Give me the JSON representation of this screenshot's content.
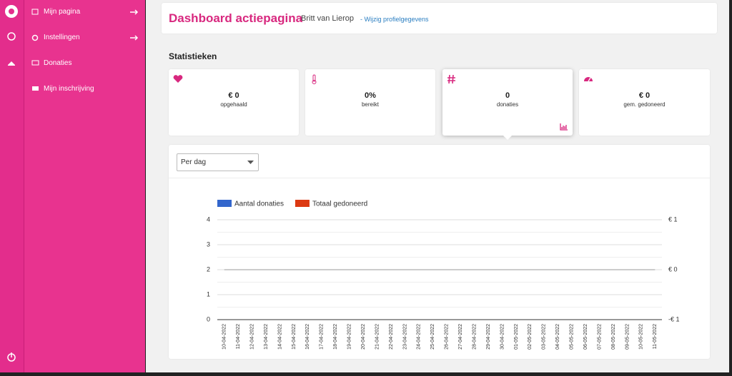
{
  "sidebar": {
    "menu": [
      "Mijn pagina",
      "Instellingen",
      "Donaties",
      "Mijn inschrijving"
    ]
  },
  "header": {
    "title": "Dashboard actiepagina",
    "user": "Britt van Lierop",
    "link": "- Wijzig profielgegevens"
  },
  "stats": {
    "title": "Statistieken",
    "cards": [
      {
        "value": "€ 0",
        "label": "opgehaald"
      },
      {
        "value": "0%",
        "label": "bereikt"
      },
      {
        "value": "0",
        "label": "donaties"
      },
      {
        "value": "€ 0",
        "label": "gem. gedoneerd"
      }
    ]
  },
  "period": "Per dag",
  "chart_data": {
    "type": "line",
    "categories": [
      "10-04-2022",
      "11-04-2022",
      "12-04-2022",
      "13-04-2022",
      "14-04-2022",
      "15-04-2022",
      "16-04-2022",
      "17-04-2022",
      "18-04-2022",
      "19-04-2022",
      "20-04-2022",
      "21-04-2022",
      "22-04-2022",
      "23-04-2022",
      "24-04-2022",
      "25-04-2022",
      "26-04-2022",
      "27-04-2022",
      "28-04-2022",
      "29-04-2022",
      "30-04-2022",
      "01-05-2022",
      "02-05-2022",
      "03-05-2022",
      "04-05-2022",
      "05-05-2022",
      "06-05-2022",
      "07-05-2022",
      "08-05-2022",
      "09-05-2022",
      "10-05-2022",
      "11-05-2022"
    ],
    "series": [
      {
        "name": "Aantal donaties",
        "color": "#3366cc",
        "values": [
          0,
          0,
          0,
          0,
          0,
          0,
          0,
          0,
          0,
          0,
          0,
          0,
          0,
          0,
          0,
          0,
          0,
          0,
          0,
          0,
          0,
          0,
          0,
          0,
          0,
          0,
          0,
          0,
          0,
          0,
          0,
          0
        ]
      },
      {
        "name": "Totaal gedoneerd",
        "color": "#dc3912",
        "axis": "y2",
        "values": [
          0,
          0,
          0,
          0,
          0,
          0,
          0,
          0,
          0,
          0,
          0,
          0,
          0,
          0,
          0,
          0,
          0,
          0,
          0,
          0,
          0,
          0,
          0,
          0,
          0,
          0,
          0,
          0,
          0,
          0,
          0,
          0
        ]
      }
    ],
    "ylim": [
      0,
      4
    ],
    "yticks": [
      0,
      1,
      2,
      3,
      4
    ],
    "y2lim": [
      -1,
      1
    ],
    "y2ticks": [
      {
        "value": -1,
        "label": "-€ 1"
      },
      {
        "value": 0,
        "label": "€ 0"
      },
      {
        "value": 1,
        "label": "€ 1"
      }
    ],
    "grid": true,
    "legend": "top"
  }
}
